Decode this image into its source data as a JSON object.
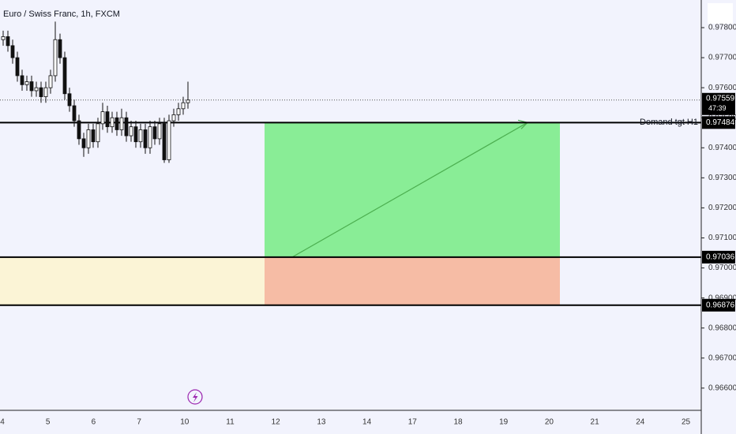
{
  "chart_data": {
    "type": "candlestick",
    "title": "Euro / Swiss Franc, 1h, FXCM",
    "categories": [
      "4",
      "5",
      "6",
      "7",
      "10",
      "11",
      "12",
      "13",
      "14",
      "17",
      "18",
      "19",
      "20",
      "21",
      "24",
      "25"
    ],
    "open": [
      0.9776,
      0.9777,
      0.9774,
      0.977,
      0.9764,
      0.9761,
      0.9762,
      0.9759,
      0.976,
      0.9757,
      0.976,
      0.9764,
      0.9776,
      0.977,
      0.9758,
      0.9754,
      0.9749,
      0.9743,
      0.974,
      0.9746,
      0.9742,
      0.9748,
      0.9752,
      0.9747,
      0.975,
      0.9746,
      0.975,
      0.9744,
      0.9747,
      0.9742,
      0.9746,
      0.974,
      0.9747,
      0.9743,
      0.9748,
      0.9736,
      0.9749,
      0.9751,
      0.9753,
      0.9755
    ],
    "high": [
      0.9779,
      0.9779,
      0.9776,
      0.9772,
      0.9766,
      0.9764,
      0.9764,
      0.9762,
      0.9762,
      0.9762,
      0.9766,
      0.9782,
      0.9778,
      0.9772,
      0.976,
      0.9756,
      0.9751,
      0.9745,
      0.9748,
      0.9748,
      0.975,
      0.9755,
      0.9754,
      0.9752,
      0.9752,
      0.9753,
      0.9752,
      0.9749,
      0.9749,
      0.9748,
      0.9748,
      0.9749,
      0.9749,
      0.975,
      0.975,
      0.9751,
      0.9753,
      0.9755,
      0.9757,
      0.9762
    ],
    "low": [
      0.9774,
      0.9772,
      0.9768,
      0.9762,
      0.9759,
      0.9759,
      0.9757,
      0.9757,
      0.9755,
      0.9755,
      0.9758,
      0.9762,
      0.9768,
      0.9756,
      0.9752,
      0.9747,
      0.9741,
      0.9737,
      0.9738,
      0.974,
      0.974,
      0.9746,
      0.9745,
      0.9745,
      0.9744,
      0.9744,
      0.9742,
      0.9742,
      0.974,
      0.974,
      0.9738,
      0.9738,
      0.9741,
      0.9741,
      0.9735,
      0.9735,
      0.9747,
      0.9749,
      0.9751,
      0.9753
    ],
    "close": [
      0.9777,
      0.9774,
      0.977,
      0.9764,
      0.9761,
      0.9762,
      0.9759,
      0.976,
      0.9757,
      0.976,
      0.9764,
      0.9776,
      0.977,
      0.9758,
      0.9754,
      0.9749,
      0.9743,
      0.974,
      0.9746,
      0.9742,
      0.9748,
      0.9752,
      0.9747,
      0.975,
      0.9746,
      0.975,
      0.9744,
      0.9747,
      0.9742,
      0.9746,
      0.974,
      0.9747,
      0.9743,
      0.9748,
      0.9736,
      0.9749,
      0.9751,
      0.9753,
      0.9755,
      0.97559
    ],
    "ylim": [
      0.96526,
      0.97892
    ],
    "yticks": [
      {
        "value": 0.978,
        "label": "0.97800"
      },
      {
        "value": 0.977,
        "label": "0.97700"
      },
      {
        "value": 0.976,
        "label": "0.97600"
      },
      {
        "value": 0.975,
        "label": "0.97500"
      },
      {
        "value": 0.974,
        "label": "0.97400"
      },
      {
        "value": 0.973,
        "label": "0.97300"
      },
      {
        "value": 0.972,
        "label": "0.97200"
      },
      {
        "value": 0.971,
        "label": "0.97100"
      },
      {
        "value": 0.97,
        "label": "0.97000"
      },
      {
        "value": 0.969,
        "label": "0.96900"
      },
      {
        "value": 0.968,
        "label": "0.96800"
      },
      {
        "value": 0.967,
        "label": "0.96700"
      },
      {
        "value": 0.966,
        "label": "0.96600"
      }
    ],
    "last_price": 0.97559,
    "countdown": "47:39",
    "levels": [
      {
        "name": "Demand tgt H1",
        "value": 0.97484
      },
      {
        "value": 0.97036
      },
      {
        "value": 0.96876
      }
    ]
  }
}
